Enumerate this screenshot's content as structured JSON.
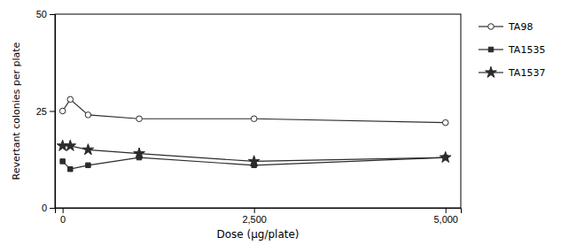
{
  "chart_data": {
    "type": "line",
    "x": [
      0,
      100,
      333,
      1000,
      2500,
      5000
    ],
    "series": [
      {
        "name": "TA98",
        "values": [
          25,
          28,
          24,
          23,
          23,
          22
        ],
        "marker": "circle-open"
      },
      {
        "name": "TA1535",
        "values": [
          12,
          10,
          11,
          13,
          11,
          13
        ],
        "marker": "square"
      },
      {
        "name": "TA1537",
        "values": [
          16,
          16,
          15,
          14,
          12,
          13
        ],
        "marker": "star"
      }
    ],
    "color": "#2b2b2b",
    "xlabel": "Dose (μg/plate)",
    "ylabel": "Revertant colonies per plate",
    "xlim": [
      -100,
      5200
    ],
    "ylim": [
      0,
      50
    ],
    "xticks": [
      0,
      {
        "value": 2500,
        "label": "2,500"
      },
      {
        "value": 5000,
        "label": "5,000"
      }
    ],
    "yticks": [
      0,
      25,
      50
    ],
    "grid": false,
    "legend": "right"
  }
}
